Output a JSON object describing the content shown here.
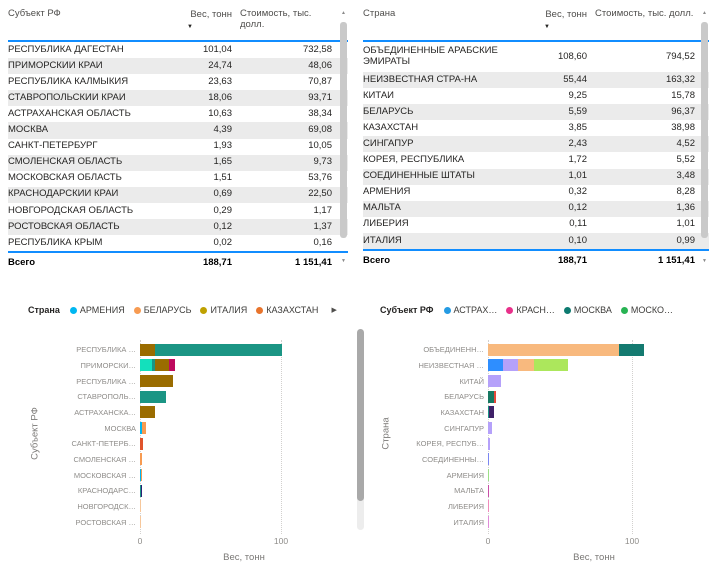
{
  "colors": {
    "accent_line": "#118DFF",
    "row_alt_bg": "#ebebeb",
    "scroll_thumb": "#c9c9c9"
  },
  "tables": {
    "left": {
      "columns": [
        "Субъект РФ",
        "Вес, тонн",
        "Стоимость, тыс. долл."
      ],
      "sort_icon": "▼",
      "rows": [
        [
          "РЕСПУБЛИКА ДАГЕСТАН",
          "101,04",
          "732,58"
        ],
        [
          "ПРИМОРСКИЙ КРАЙ",
          "24,74",
          "48,06"
        ],
        [
          "РЕСПУБЛИКА КАЛМЫКИЯ",
          "23,63",
          "70,87"
        ],
        [
          "СТАВРОПОЛЬСКИЙ КРАЙ",
          "18,06",
          "93,71"
        ],
        [
          "АСТРАХАНСКАЯ ОБЛАСТЬ",
          "10,63",
          "38,34"
        ],
        [
          "МОСКВА",
          "4,39",
          "69,08"
        ],
        [
          "САНКТ-ПЕТЕРБУРГ",
          "1,93",
          "10,05"
        ],
        [
          "СМОЛЕНСКАЯ ОБЛАСТЬ",
          "1,65",
          "9,73"
        ],
        [
          "МОСКОВСКАЯ ОБЛАСТЬ",
          "1,51",
          "53,76"
        ],
        [
          "КРАСНОДАРСКИЙ КРАЙ",
          "0,69",
          "22,50"
        ],
        [
          "НОВГОРОДСКАЯ ОБЛАСТЬ",
          "0,29",
          "1,17"
        ],
        [
          "РОСТОВСКАЯ ОБЛАСТЬ",
          "0,12",
          "1,37"
        ],
        [
          "РЕСПУБЛИКА КРЫМ",
          "0,02",
          "0,16"
        ]
      ],
      "total": [
        "Всего",
        "188,71",
        "1 151,41"
      ]
    },
    "right": {
      "columns": [
        "Страна",
        "Вес, тонн",
        "Стоимость, тыс. долл."
      ],
      "sort_icon": "▼",
      "rows": [
        [
          "ОБЪЕДИНЕННЫЕ АРАБСКИЕ ЭМИРАТЫ",
          "108,60",
          "794,52"
        ],
        [
          "НЕИЗВЕСТНАЯ СТРА-НА",
          "55,44",
          "163,32"
        ],
        [
          "КИТАЙ",
          "9,25",
          "15,78"
        ],
        [
          "БЕЛАРУСЬ",
          "5,59",
          "96,37"
        ],
        [
          "КАЗАХСТАН",
          "3,85",
          "38,98"
        ],
        [
          "СИНГАПУР",
          "2,43",
          "4,52"
        ],
        [
          "КОРЕЯ, РЕСПУБЛИКА",
          "1,72",
          "5,52"
        ],
        [
          "СОЕДИНЕННЫЕ ШТАТЫ",
          "1,01",
          "3,48"
        ],
        [
          "АРМЕНИЯ",
          "0,32",
          "8,28"
        ],
        [
          "МАЛЬТА",
          "0,12",
          "1,36"
        ],
        [
          "ЛИБЕРИЯ",
          "0,11",
          "1,01"
        ],
        [
          "ИТАЛИЯ",
          "0,10",
          "0,99"
        ]
      ],
      "total": [
        "Всего",
        "188,71",
        "1 151,41"
      ]
    }
  },
  "charts": {
    "left": {
      "legend_title": "Страна",
      "legend_items": [
        {
          "label": "АРМЕНИЯ",
          "color": "#00B7F1"
        },
        {
          "label": "БЕЛАРУСЬ",
          "color": "#F79B52"
        },
        {
          "label": "ИТАЛИЯ",
          "color": "#BFA100"
        },
        {
          "label": "КАЗАХСТАН",
          "color": "#E8742C"
        }
      ],
      "legend_more_arrow": "▶",
      "y_axis_title": "Субъект РФ",
      "x_axis_title": "Вес, тонн",
      "x_ticks": [
        "0",
        "100"
      ],
      "bars": [
        {
          "label": "РЕСПУБЛИКА …",
          "segments": [
            {
              "color": "#9A6C00",
              "value": 10.6
            },
            {
              "color": "#1B9584",
              "value": 90.4
            }
          ]
        },
        {
          "label": "ПРИМОРСКИ…",
          "segments": [
            {
              "color": "#13E0BC",
              "value": 8.5
            },
            {
              "color": "#1B9584",
              "value": 2.3
            },
            {
              "color": "#9A6C00",
              "value": 9.8
            },
            {
              "color": "#BE0A5E",
              "value": 4.1
            }
          ]
        },
        {
          "label": "РЕСПУБЛИКА …",
          "segments": [
            {
              "color": "#9A6C00",
              "value": 23.6
            }
          ]
        },
        {
          "label": "СТАВРОПОЛЬ…",
          "segments": [
            {
              "color": "#1B9584",
              "value": 18.1
            }
          ]
        },
        {
          "label": "АСТРАХАНСКА…",
          "segments": [
            {
              "color": "#9A6C00",
              "value": 10.6
            }
          ]
        },
        {
          "label": "МОСКВА",
          "segments": [
            {
              "color": "#00B7F1",
              "value": 1.5
            },
            {
              "color": "#F79B52",
              "value": 2.9
            }
          ]
        },
        {
          "label": "САНКТ-ПЕТЕРБ…",
          "segments": [
            {
              "color": "#E0542C",
              "value": 1.9
            }
          ]
        },
        {
          "label": "СМОЛЕНСКАЯ …",
          "segments": [
            {
              "color": "#F79B52",
              "value": 1.7
            }
          ]
        },
        {
          "label": "МОСКОВСКАЯ …",
          "segments": [
            {
              "color": "#00B7F1",
              "value": 0.7
            },
            {
              "color": "#F79B52",
              "value": 0.8
            }
          ]
        },
        {
          "label": "КРАСНОДАРС…",
          "segments": [
            {
              "color": "#1B9584",
              "value": 0.35
            },
            {
              "color": "#2D2277",
              "value": 0.34
            }
          ]
        },
        {
          "label": "НОВГОРОДСК…",
          "segments": [
            {
              "color": "#F6C79B",
              "value": 0.29
            }
          ]
        },
        {
          "label": "РОСТОВСКАЯ …",
          "segments": [
            {
              "color": "#F6C79B",
              "value": 0.12
            }
          ]
        }
      ]
    },
    "right": {
      "legend_title": "Субъект РФ",
      "legend_items": [
        {
          "label": "АСТРАХ…",
          "color": "#259BE3"
        },
        {
          "label": "КРАСН…",
          "color": "#E8308A"
        },
        {
          "label": "МОСКВА",
          "color": "#0D7A70"
        },
        {
          "label": "МОСКО…",
          "color": "#28B353"
        }
      ],
      "legend_more_arrow": "",
      "y_axis_title": "Страна",
      "x_axis_title": "Вес, тонн",
      "x_ticks": [
        "0",
        "100"
      ],
      "bars": [
        {
          "label": "ОБЪЕДИНЕНН…",
          "segments": [
            {
              "color": "#F8B97E",
              "value": 90.6
            },
            {
              "color": "#147A70",
              "value": 18.0
            }
          ]
        },
        {
          "label": "НЕИЗВЕСТНАЯ …",
          "segments": [
            {
              "color": "#2E8EFF",
              "value": 10.6
            },
            {
              "color": "#B5A1FA",
              "value": 10.2
            },
            {
              "color": "#F8B97E",
              "value": 11.4
            },
            {
              "color": "#ACE75C",
              "value": 23.2
            }
          ]
        },
        {
          "label": "КИТАЙ",
          "segments": [
            {
              "color": "#B5A1FA",
              "value": 9.3
            }
          ]
        },
        {
          "label": "БЕЛАРУСЬ",
          "segments": [
            {
              "color": "#177862",
              "value": 3.9
            },
            {
              "color": "#E5493B",
              "value": 1.7
            }
          ]
        },
        {
          "label": "КАЗАХСТАН",
          "segments": [
            {
              "color": "#1B9584",
              "value": 0.5
            },
            {
              "color": "#3F2168",
              "value": 3.4
            }
          ]
        },
        {
          "label": "СИНГАПУР",
          "segments": [
            {
              "color": "#B5A1FA",
              "value": 2.4
            }
          ]
        },
        {
          "label": "КОРЕЯ, РЕСПУБ…",
          "segments": [
            {
              "color": "#B5A1FA",
              "value": 1.7
            }
          ]
        },
        {
          "label": "СОЕДИНЕННЫ…",
          "segments": [
            {
              "color": "#7B86F2",
              "value": 1.0
            }
          ]
        },
        {
          "label": "АРМЕНИЯ",
          "segments": [
            {
              "color": "#9CE087",
              "value": 0.32
            }
          ]
        },
        {
          "label": "МАЛЬТА",
          "segments": [
            {
              "color": "#C94FA8",
              "value": 0.12
            }
          ]
        },
        {
          "label": "ЛИБЕРИЯ",
          "segments": [
            {
              "color": "#F08BBB",
              "value": 0.11
            }
          ]
        },
        {
          "label": "ИТАЛИЯ",
          "segments": [
            {
              "color": "#E08BD9",
              "value": 0.1
            }
          ]
        }
      ]
    }
  },
  "chart_data": [
    {
      "type": "table",
      "title": "Субъект РФ",
      "columns": [
        "Субъект РФ",
        "Вес, тонн",
        "Стоимость, тыс. долл."
      ],
      "sorted_by": "Вес, тонн (убыв.)",
      "rows": [
        [
          "РЕСПУБЛИКА ДАГЕСТАН",
          101.04,
          732.58
        ],
        [
          "ПРИМОРСКИЙ КРАЙ",
          24.74,
          48.06
        ],
        [
          "РЕСПУБЛИКА КАЛМЫКИЯ",
          23.63,
          70.87
        ],
        [
          "СТАВРОПОЛЬСКИЙ КРАЙ",
          18.06,
          93.71
        ],
        [
          "АСТРАХАНСКАЯ ОБЛАСТЬ",
          10.63,
          38.34
        ],
        [
          "МОСКВА",
          4.39,
          69.08
        ],
        [
          "САНКТ-ПЕТЕРБУРГ",
          1.93,
          10.05
        ],
        [
          "СМОЛЕНСКАЯ ОБЛАСТЬ",
          1.65,
          9.73
        ],
        [
          "МОСКОВСКАЯ ОБЛАСТЬ",
          1.51,
          53.76
        ],
        [
          "КРАСНОДАРСКИЙ КРАЙ",
          0.69,
          22.5
        ],
        [
          "НОВГОРОДСКАЯ ОБЛАСТЬ",
          0.29,
          1.17
        ],
        [
          "РОСТОВСКАЯ ОБЛАСТЬ",
          0.12,
          1.37
        ],
        [
          "РЕСПУБЛИКА КРЫМ",
          0.02,
          0.16
        ]
      ],
      "total": [
        "Всего",
        188.71,
        1151.41
      ]
    },
    {
      "type": "table",
      "title": "Страна",
      "columns": [
        "Страна",
        "Вес, тонн",
        "Стоимость, тыс. долл."
      ],
      "sorted_by": "Вес, тонн (убыв.)",
      "rows": [
        [
          "ОБЪЕДИНЕННЫЕ АРАБСКИЕ ЭМИРАТЫ",
          108.6,
          794.52
        ],
        [
          "НЕИЗВЕСТНАЯ СТРА-НА",
          55.44,
          163.32
        ],
        [
          "КИТАЙ",
          9.25,
          15.78
        ],
        [
          "БЕЛАРУСЬ",
          5.59,
          96.37
        ],
        [
          "КАЗАХСТАН",
          3.85,
          38.98
        ],
        [
          "СИНГАПУР",
          2.43,
          4.52
        ],
        [
          "КОРЕЯ, РЕСПУБЛИКА",
          1.72,
          5.52
        ],
        [
          "СОЕДИНЕННЫЕ ШТАТЫ",
          1.01,
          3.48
        ],
        [
          "АРМЕНИЯ",
          0.32,
          8.28
        ],
        [
          "МАЛЬТА",
          0.12,
          1.36
        ],
        [
          "ЛИБЕРИЯ",
          0.11,
          1.01
        ],
        [
          "ИТАЛИЯ",
          0.1,
          0.99
        ]
      ],
      "total": [
        "Всего",
        188.71,
        1151.41
      ]
    },
    {
      "type": "bar",
      "orientation": "horizontal",
      "stacked": true,
      "stacked_by": "Страна",
      "legend_position": "top",
      "legend_visible": [
        "АРМЕНИЯ",
        "БЕЛАРУСЬ",
        "ИТАЛИЯ",
        "КАЗАХСТАН"
      ],
      "ylabel": "Субъект РФ",
      "xlabel": "Вес, тонн",
      "xlim": [
        0,
        147
      ],
      "x_ticks": [
        0,
        100
      ],
      "grid": "dotted-vertical",
      "categories": [
        "РЕСПУБЛИКА ДАГЕСТАН",
        "ПРИМОРСКИЙ КРАЙ",
        "РЕСПУБЛИКА КАЛМЫКИЯ",
        "СТАВРОПОЛЬСКИЙ КРАЙ",
        "АСТРАХАНСКАЯ ОБЛАСТЬ",
        "МОСКВА",
        "САНКТ-ПЕТЕРБУРГ",
        "СМОЛЕНСКАЯ ОБЛАСТЬ",
        "МОСКОВСКАЯ ОБЛАСТЬ",
        "КРАСНОДАРСКИЙ КРАЙ",
        "НОВГОРОДСКАЯ ОБЛАСТЬ",
        "РОСТОВСКАЯ ОБЛАСТЬ"
      ],
      "totals": [
        101.04,
        24.74,
        23.63,
        18.06,
        10.63,
        4.39,
        1.93,
        1.65,
        1.51,
        0.69,
        0.29,
        0.12
      ]
    },
    {
      "type": "bar",
      "orientation": "horizontal",
      "stacked": true,
      "stacked_by": "Субъект РФ",
      "legend_position": "top",
      "legend_visible": [
        "АСТРАХ…",
        "КРАСН…",
        "МОСКВА",
        "МОСКО…"
      ],
      "ylabel": "Страна",
      "xlabel": "Вес, тонн",
      "xlim": [
        0,
        147
      ],
      "x_ticks": [
        0,
        100
      ],
      "grid": "dotted-vertical",
      "categories": [
        "ОБЪЕДИНЕННЫЕ АРАБСКИЕ ЭМИРАТЫ",
        "НЕИЗВЕСТНАЯ СТРА-НА",
        "КИТАЙ",
        "БЕЛАРУСЬ",
        "КАЗАХСТАН",
        "СИНГАПУР",
        "КОРЕЯ, РЕСПУБЛИКА",
        "СОЕДИНЕННЫЕ ШТАТЫ",
        "АРМЕНИЯ",
        "МАЛЬТА",
        "ЛИБЕРИЯ",
        "ИТАЛИЯ"
      ],
      "totals": [
        108.6,
        55.44,
        9.25,
        5.59,
        3.85,
        2.43,
        1.72,
        1.01,
        0.32,
        0.12,
        0.11,
        0.1
      ]
    }
  ]
}
